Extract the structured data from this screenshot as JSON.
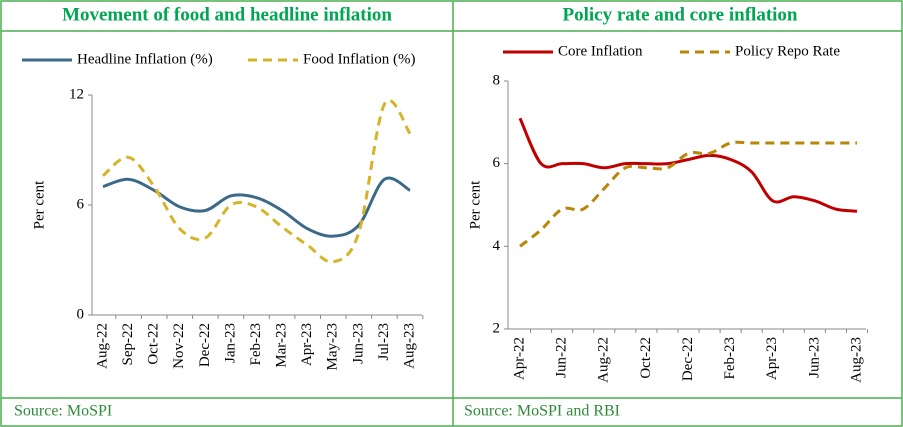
{
  "chart_data": [
    {
      "type": "line",
      "title": "Movement of food and headline inflation",
      "ylabel": "Per cent",
      "source": "Source: MoSPI",
      "categories": [
        "Aug-22",
        "Sep-22",
        "Oct-22",
        "Nov-22",
        "Dec-22",
        "Jan-23",
        "Feb-23",
        "Mar-23",
        "Apr-23",
        "May-23",
        "Jun-23",
        "Jul-23",
        "Aug-23"
      ],
      "series": [
        {
          "name": "Headline Inflation (%)",
          "color": "#3b6a88",
          "dash": false,
          "values": [
            7.0,
            7.4,
            6.8,
            5.9,
            5.7,
            6.5,
            6.4,
            5.7,
            4.7,
            4.3,
            4.9,
            7.4,
            6.8
          ]
        },
        {
          "name": "Food Inflation (%)",
          "color": "#d6b42a",
          "dash": true,
          "values": [
            7.6,
            8.6,
            7.0,
            4.7,
            4.2,
            6.0,
            5.9,
            4.8,
            3.8,
            2.9,
            4.5,
            11.5,
            9.9
          ]
        }
      ],
      "ylim": [
        0,
        12
      ],
      "yticks": [
        0,
        6,
        12
      ]
    },
    {
      "type": "line",
      "title": "Policy rate and core inflation",
      "ylabel": "Per cent",
      "source": "Source: MoSPI and RBI",
      "categories": [
        "Apr-22",
        null,
        "Jun-22",
        null,
        "Aug-22",
        null,
        "Oct-22",
        null,
        "Dec-22",
        null,
        "Feb-23",
        null,
        "Apr-23",
        null,
        "Jun-23",
        null,
        "Aug-23"
      ],
      "series": [
        {
          "name": "Core Inflation",
          "color": "#c00000",
          "dash": false,
          "values": [
            7.1,
            6.0,
            6.0,
            6.0,
            5.9,
            6.0,
            6.0,
            6.0,
            6.1,
            6.2,
            6.1,
            5.8,
            5.1,
            5.2,
            5.1,
            4.9,
            4.85
          ]
        },
        {
          "name": "Policy Repo Rate",
          "color": "#b8860b",
          "dash": true,
          "values": [
            4.0,
            4.4,
            4.9,
            4.9,
            5.4,
            5.9,
            5.9,
            5.9,
            6.25,
            6.25,
            6.5,
            6.5,
            6.5,
            6.5,
            6.5,
            6.5,
            6.5
          ]
        }
      ],
      "ylim": [
        2,
        8
      ],
      "yticks": [
        2,
        4,
        6,
        8
      ]
    }
  ]
}
